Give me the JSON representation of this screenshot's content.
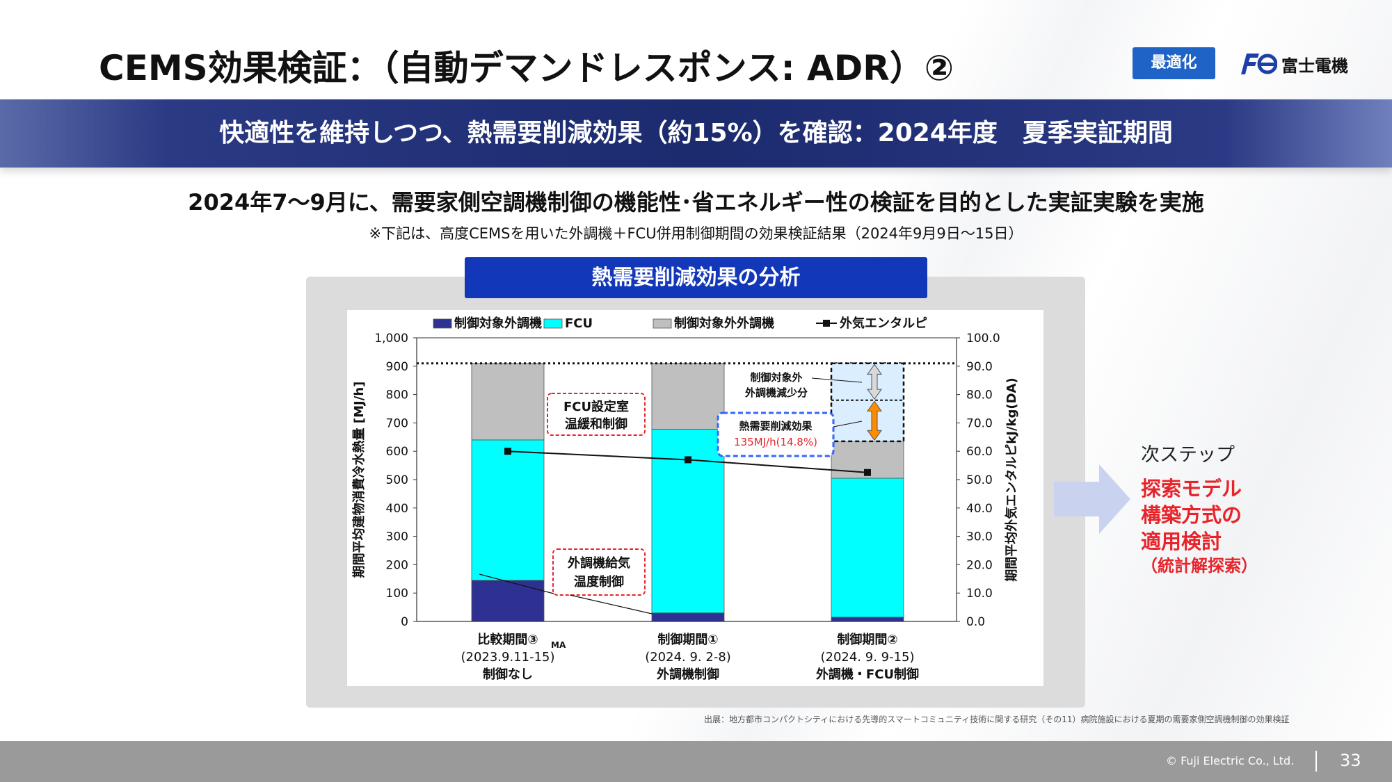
{
  "header": {
    "title": "CEMS効果検証：（自動デマンドレスポンス: ADR）②",
    "badge": "最適化",
    "logo_text": "富士電機",
    "logo_mark": "Fe"
  },
  "banner": {
    "text": "快適性を維持しつつ、熱需要削減効果（約15%）を確認：2024年度　夏季実証期間"
  },
  "lead": {
    "text": "2024年7～9月に、需要家側空調機制御の機能性･省エネルギー性の検証を目的とした実証実験を実施",
    "note": "※下記は、高度CEMSを用いた外調機＋FCU併用制御期間の効果検証結果（2024年9月9日～15日）"
  },
  "panel": {
    "title": "熱需要削減効果の分析"
  },
  "colors": {
    "navy": "#2e3192",
    "cyan": "#00ffff",
    "gray": "#bfbfbf",
    "accent_red": "#e8232a",
    "badge_blue": "#1f63c6",
    "panel_title_blue": "#1237b8",
    "dashed_blue": "#3366ff",
    "orange": "#ff8c00",
    "light_blue_fill": "#dbeeff"
  },
  "chart_data": {
    "type": "bar",
    "stacked": true,
    "categories": [
      "比較期間③",
      "制御期間①",
      "制御期間②"
    ],
    "category_labels": [
      [
        "比較期間③",
        "(2023.9.11-15)",
        "制御なし"
      ],
      [
        "制御期間①",
        "(2024. 9. 2-8)",
        "外調機制御"
      ],
      [
        "制御期間②",
        "(2024. 9. 9-15)",
        "外調機・FCU制御"
      ]
    ],
    "category_subscript": "MA",
    "series": [
      {
        "name": "制御対象外調機",
        "values": [
          145,
          30,
          15
        ],
        "color": "#2e3192"
      },
      {
        "name": "FCU",
        "values": [
          495,
          648,
          490
        ],
        "color": "#00ffff"
      },
      {
        "name": "制御対象外外調機",
        "values": [
          270,
          232,
          130
        ],
        "color": "#bfbfbf"
      }
    ],
    "line_series": {
      "name": "外気エンタルピ",
      "axis": "right",
      "values": [
        60.0,
        57.0,
        52.5
      ]
    },
    "reference_line": {
      "value": 910,
      "style": "dotted"
    },
    "ylabel": "期間平均建物消費冷水熱量 [MJ/h]",
    "ylabel_right": "期間平均外気エンタルピkJ/kg(DA)",
    "ylim": [
      0,
      1000
    ],
    "ylim_right": [
      0,
      100
    ],
    "yticks": [
      "0",
      "100",
      "200",
      "300",
      "400",
      "500",
      "600",
      "700",
      "800",
      "900",
      "1,000"
    ],
    "yticks_right": [
      "0.0",
      "10.0",
      "20.0",
      "30.0",
      "40.0",
      "50.0",
      "60.0",
      "70.0",
      "80.0",
      "90.0",
      "100.0"
    ],
    "legend_position": "top",
    "callouts": {
      "fcu": [
        "FCU設定室",
        "温緩和制御"
      ],
      "supply": [
        "外調機給気",
        "温度制御"
      ],
      "non_target": [
        "制御対象外",
        "外調機減少分"
      ],
      "effect_title": "熱需要削減効果",
      "effect_value": "135MJ/h(14.8%)"
    },
    "reduction_breakdown": {
      "non_target_decrease": [
        780,
        910
      ],
      "heat_demand_effect": [
        635,
        780
      ]
    }
  },
  "next_step": {
    "label": "次ステップ",
    "lines": [
      "探索モデル",
      "構築方式の",
      "適用検討"
    ],
    "sub": "（統計解探索）"
  },
  "source": "出展：地方都市コンパクトシティにおける先導的スマートコミュニティ技術に関する研究（その11）病院施設における夏期の需要家側空調機制御の効果検証",
  "footer": {
    "copyright": "© Fuji Electric Co., Ltd.",
    "page": "33"
  }
}
